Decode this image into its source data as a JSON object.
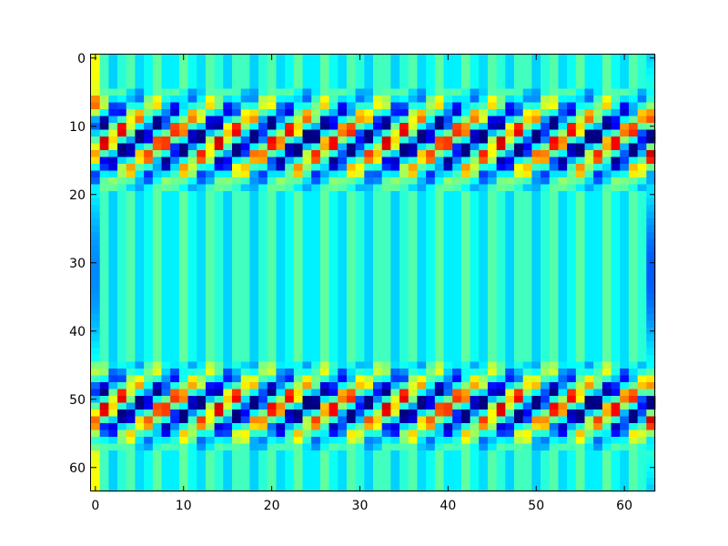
{
  "chart_data": {
    "type": "heatmap",
    "title": "",
    "xlabel": "",
    "ylabel": "",
    "colormap": "jet",
    "background_color": "#40e8c8",
    "grid": false,
    "legend": "none",
    "rows": 64,
    "cols": 64,
    "xlim": [
      -0.5,
      63.5
    ],
    "ylim": [
      63.5,
      -0.5
    ],
    "x_ticks": [
      {
        "value": 0,
        "label": "0"
      },
      {
        "value": 10,
        "label": "10"
      },
      {
        "value": 20,
        "label": "20"
      },
      {
        "value": 30,
        "label": "30"
      },
      {
        "value": 40,
        "label": "40"
      },
      {
        "value": 50,
        "label": "50"
      },
      {
        "value": 60,
        "label": "60"
      }
    ],
    "y_ticks": [
      {
        "value": 0,
        "label": "0"
      },
      {
        "value": 10,
        "label": "10"
      },
      {
        "value": 20,
        "label": "20"
      },
      {
        "value": 30,
        "label": "30"
      },
      {
        "value": 40,
        "label": "40"
      },
      {
        "value": 50,
        "label": "50"
      },
      {
        "value": 60,
        "label": "60"
      }
    ],
    "pattern": {
      "column_period": 6.4,
      "bands": [
        {
          "center_row": 12,
          "half_width": 6
        },
        {
          "center_row": 51,
          "half_width": 5
        }
      ]
    }
  }
}
